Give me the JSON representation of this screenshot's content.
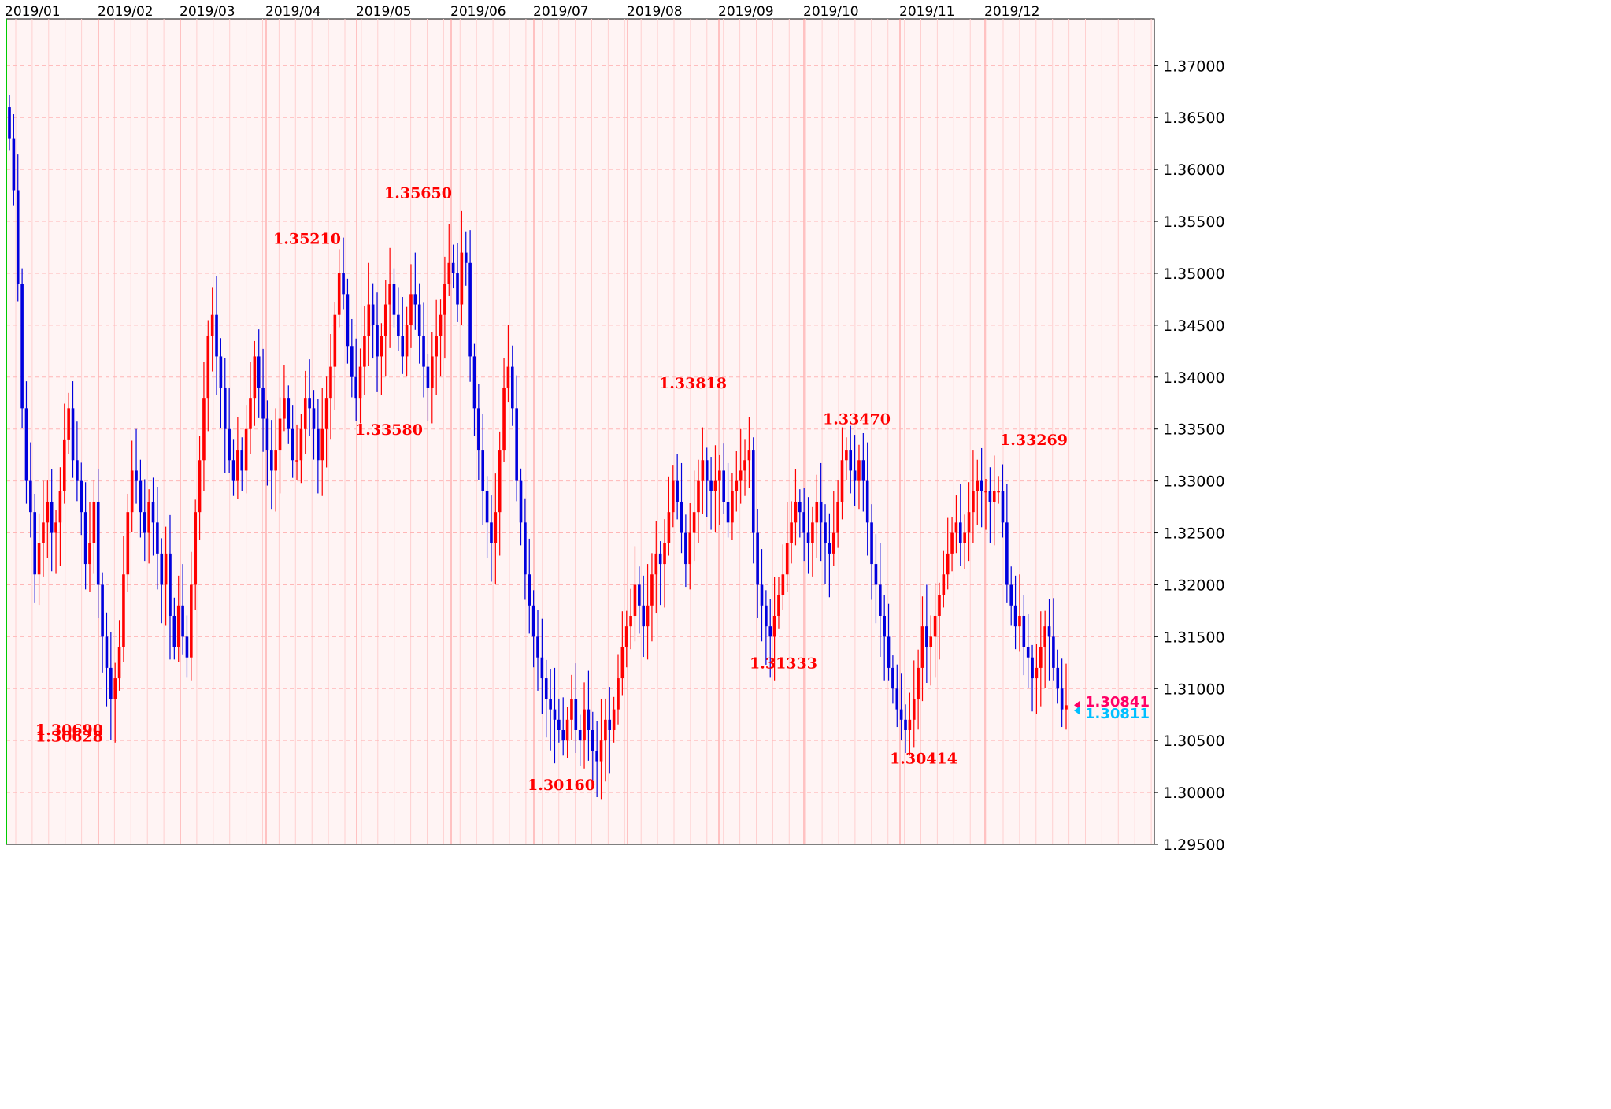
{
  "chart_data": {
    "type": "candlestick",
    "x_labels": [
      "2019/01",
      "2019/02",
      "2019/03",
      "2019/04",
      "2019/05",
      "2019/06",
      "2019/07",
      "2019/08",
      "2019/09",
      "2019/10",
      "2019/11",
      "2019/12"
    ],
    "y_ticks": [
      "1.37000",
      "1.36500",
      "1.36000",
      "1.35500",
      "1.35000",
      "1.34500",
      "1.34000",
      "1.33500",
      "1.33000",
      "1.32500",
      "1.32000",
      "1.31500",
      "1.31000",
      "1.30500",
      "1.30000",
      "1.29500"
    ],
    "ylim": [
      1.295,
      1.3745
    ],
    "annotations": [
      {
        "text": "1.30690",
        "price": 1.3069
      },
      {
        "text": "1.35210",
        "price": 1.3521
      },
      {
        "text": "1.33580",
        "price": 1.3358
      },
      {
        "text": "1.35650",
        "price": 1.3565
      },
      {
        "text": "1.30160",
        "price": 1.3016
      },
      {
        "text": "1.33818",
        "price": 1.33818
      },
      {
        "text": "1.31333",
        "price": 1.31333
      },
      {
        "text": "1.33470",
        "price": 1.3347
      },
      {
        "text": "1.30414",
        "price": 1.30414
      },
      {
        "text": "1.33269",
        "price": 1.33269
      },
      {
        "text": "1.30628",
        "price": 1.30628
      }
    ],
    "current_prices": [
      {
        "text": "1.30841",
        "price": 1.30841,
        "color": "#ff0066"
      },
      {
        "text": "1.30811",
        "price": 1.30811,
        "color": "#00bfff"
      }
    ],
    "closes": [
      1.363,
      1.358,
      1.349,
      1.337,
      1.33,
      1.327,
      1.321,
      1.324,
      1.326,
      1.328,
      1.325,
      1.326,
      1.329,
      1.334,
      1.337,
      1.332,
      1.33,
      1.327,
      1.322,
      1.324,
      1.328,
      1.32,
      1.315,
      1.312,
      1.309,
      1.311,
      1.314,
      1.321,
      1.327,
      1.331,
      1.33,
      1.327,
      1.325,
      1.328,
      1.326,
      1.323,
      1.32,
      1.323,
      1.317,
      1.314,
      1.318,
      1.315,
      1.313,
      1.32,
      1.327,
      1.332,
      1.338,
      1.344,
      1.346,
      1.342,
      1.339,
      1.335,
      1.332,
      1.33,
      1.333,
      1.331,
      1.335,
      1.338,
      1.342,
      1.339,
      1.336,
      1.333,
      1.331,
      1.333,
      1.336,
      1.338,
      1.335,
      1.332,
      1.332,
      1.335,
      1.338,
      1.337,
      1.335,
      1.332,
      1.335,
      1.338,
      1.341,
      1.346,
      1.35,
      1.348,
      1.343,
      1.34,
      1.338,
      1.341,
      1.344,
      1.347,
      1.345,
      1.342,
      1.344,
      1.347,
      1.349,
      1.346,
      1.344,
      1.342,
      1.345,
      1.348,
      1.347,
      1.344,
      1.341,
      1.339,
      1.342,
      1.344,
      1.346,
      1.349,
      1.351,
      1.35,
      1.347,
      1.352,
      1.351,
      1.342,
      1.337,
      1.333,
      1.329,
      1.326,
      1.324,
      1.327,
      1.333,
      1.339,
      1.341,
      1.337,
      1.33,
      1.326,
      1.321,
      1.318,
      1.315,
      1.313,
      1.311,
      1.309,
      1.308,
      1.307,
      1.306,
      1.305,
      1.307,
      1.309,
      1.306,
      1.305,
      1.308,
      1.306,
      1.304,
      1.303,
      1.305,
      1.307,
      1.306,
      1.308,
      1.311,
      1.314,
      1.316,
      1.317,
      1.32,
      1.318,
      1.316,
      1.318,
      1.321,
      1.323,
      1.322,
      1.324,
      1.327,
      1.33,
      1.328,
      1.325,
      1.322,
      1.325,
      1.327,
      1.33,
      1.332,
      1.33,
      1.329,
      1.33,
      1.331,
      1.328,
      1.326,
      1.329,
      1.33,
      1.331,
      1.332,
      1.333,
      1.325,
      1.32,
      1.318,
      1.316,
      1.315,
      1.317,
      1.319,
      1.321,
      1.324,
      1.326,
      1.328,
      1.327,
      1.325,
      1.324,
      1.326,
      1.328,
      1.326,
      1.324,
      1.323,
      1.325,
      1.328,
      1.332,
      1.333,
      1.331,
      1.33,
      1.332,
      1.33,
      1.326,
      1.322,
      1.32,
      1.317,
      1.315,
      1.312,
      1.31,
      1.308,
      1.307,
      1.306,
      1.307,
      1.309,
      1.312,
      1.316,
      1.314,
      1.315,
      1.317,
      1.319,
      1.321,
      1.323,
      1.325,
      1.326,
      1.324,
      1.325,
      1.327,
      1.329,
      1.33,
      1.329,
      1.329,
      1.328,
      1.329,
      1.329,
      1.326,
      1.32,
      1.318,
      1.316,
      1.317,
      1.314,
      1.313,
      1.311,
      1.312,
      1.314,
      1.316,
      1.315,
      1.312,
      1.31,
      1.308,
      1.3084
    ]
  }
}
